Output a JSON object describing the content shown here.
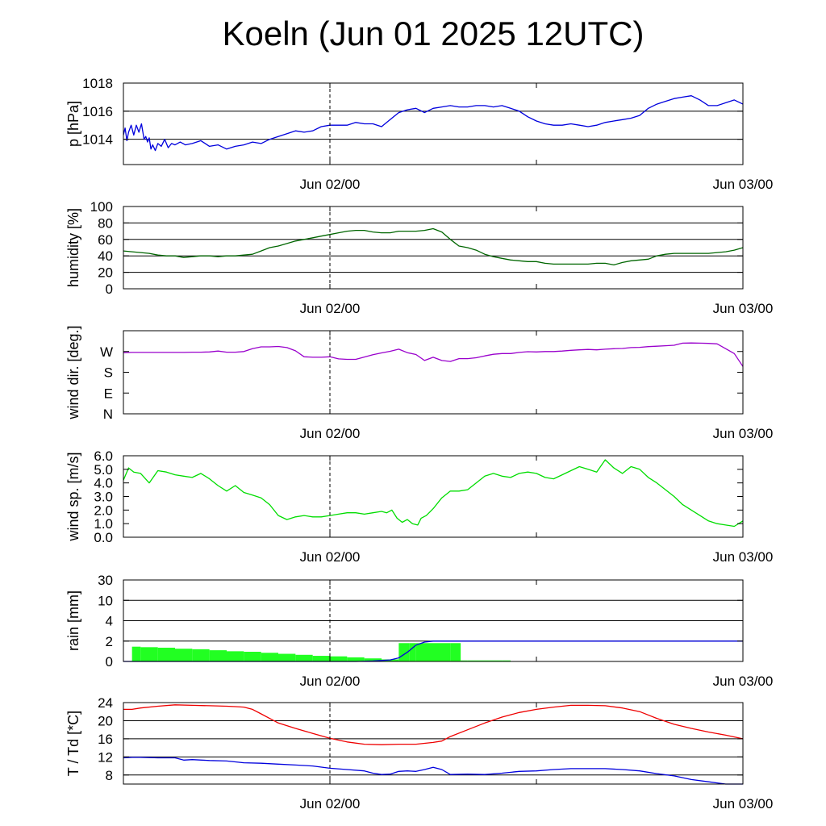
{
  "title": "Koeln (Jun 01 2025 12UTC)",
  "x_axis": {
    "unit": "hours since Jun 01 12UTC",
    "range": [
      0,
      36
    ],
    "tick_positions": [
      12,
      24,
      36
    ],
    "tick_labels": [
      "Jun 02/00",
      "Jun 03/00"
    ],
    "tick_label_positions": [
      12,
      36
    ],
    "current_time_marker": 12
  },
  "chart_data": [
    {
      "type": "line",
      "ylabel": "p [hPa]",
      "ylim": [
        1012.2,
        1018.0
      ],
      "yticks": [
        1014,
        1016,
        1018
      ],
      "ytick_labels": [
        "1014",
        "1016",
        "1018"
      ],
      "grid": true,
      "series": [
        {
          "color": "#0000dd",
          "x": [
            0,
            0.1,
            0.2,
            0.3,
            0.45,
            0.6,
            0.75,
            0.9,
            1.05,
            1.2,
            1.3,
            1.4,
            1.5,
            1.6,
            1.7,
            1.85,
            2.0,
            2.2,
            2.4,
            2.6,
            2.8,
            3.0,
            3.3,
            3.6,
            4.0,
            4.5,
            5.0,
            5.5,
            6.0,
            6.5,
            7.0,
            7.5,
            8.0,
            8.5,
            9.0,
            9.5,
            10.0,
            10.5,
            11.0,
            11.5,
            12.0,
            12.5,
            13.0,
            13.5,
            14.0,
            14.5,
            15.0,
            15.6,
            16.0,
            16.5,
            17.0,
            17.5,
            18.0,
            18.5,
            19.0,
            19.5,
            20.0,
            20.5,
            21.0,
            21.5,
            22.0,
            22.5,
            23.0,
            23.5,
            24.0,
            24.5,
            25.0,
            25.5,
            26.0,
            26.5,
            27.0,
            27.5,
            28.0,
            28.5,
            29.0,
            29.5,
            30.0,
            30.5,
            31.0,
            31.5,
            32.0,
            32.5,
            33.0,
            33.5,
            34.0,
            34.5,
            35.0,
            35.5,
            36.0
          ],
          "y": [
            1014.3,
            1014.8,
            1013.9,
            1014.5,
            1015.0,
            1014.3,
            1015.0,
            1014.5,
            1015.1,
            1014.0,
            1014.2,
            1013.8,
            1014.1,
            1013.3,
            1013.6,
            1013.2,
            1013.7,
            1013.5,
            1014.0,
            1013.4,
            1013.7,
            1013.6,
            1013.8,
            1013.6,
            1013.7,
            1013.9,
            1013.5,
            1013.6,
            1013.3,
            1013.5,
            1013.6,
            1013.8,
            1013.7,
            1014.0,
            1014.2,
            1014.4,
            1014.6,
            1014.5,
            1014.6,
            1014.9,
            1015.0,
            1015.0,
            1015.0,
            1015.2,
            1015.1,
            1015.1,
            1014.9,
            1015.5,
            1015.9,
            1016.1,
            1016.2,
            1015.9,
            1016.2,
            1016.3,
            1016.4,
            1016.3,
            1016.3,
            1016.4,
            1016.4,
            1016.3,
            1016.4,
            1016.2,
            1016.0,
            1015.6,
            1015.3,
            1015.1,
            1015.0,
            1015.0,
            1015.1,
            1015.0,
            1014.9,
            1015.0,
            1015.2,
            1015.3,
            1015.4,
            1015.5,
            1015.7,
            1016.2,
            1016.5,
            1016.7,
            1016.9,
            1017.0,
            1017.1,
            1016.8,
            1016.4,
            1016.4,
            1016.6,
            1016.8,
            1016.5
          ]
        }
      ]
    },
    {
      "type": "line",
      "ylabel": "humidity [%]",
      "ylim": [
        0,
        100
      ],
      "yticks": [
        0,
        20,
        40,
        60,
        80,
        100
      ],
      "ytick_labels": [
        "0",
        "20",
        "40",
        "60",
        "80",
        "100"
      ],
      "grid": true,
      "series": [
        {
          "color": "#006600",
          "x": [
            0,
            0.5,
            1.0,
            1.5,
            2.0,
            2.5,
            3.0,
            3.5,
            4.0,
            4.5,
            5.0,
            5.5,
            6.0,
            6.5,
            7.0,
            7.5,
            8.0,
            8.5,
            9.0,
            9.5,
            10.0,
            10.5,
            11.0,
            11.5,
            12.0,
            12.5,
            13.0,
            13.5,
            14.0,
            14.5,
            15.0,
            15.5,
            16.0,
            16.5,
            17.0,
            17.5,
            18.0,
            18.5,
            19.0,
            19.5,
            20.0,
            20.5,
            21.0,
            21.5,
            22.0,
            22.5,
            23.0,
            23.5,
            24.0,
            24.5,
            25.0,
            25.5,
            26.0,
            26.5,
            27.0,
            27.5,
            28.0,
            28.5,
            29.0,
            29.5,
            30.0,
            30.5,
            31.0,
            31.5,
            32.0,
            32.5,
            33.0,
            33.5,
            34.0,
            34.5,
            35.0,
            35.5,
            36.0
          ],
          "y": [
            46,
            45,
            44,
            43,
            41,
            40,
            40,
            38,
            39,
            40,
            40,
            39,
            40,
            40,
            41,
            42,
            46,
            50,
            52,
            55,
            58,
            60,
            62,
            64,
            66,
            68,
            70,
            71,
            71,
            69,
            68,
            68,
            70,
            70,
            70,
            71,
            73,
            69,
            60,
            52,
            50,
            47,
            42,
            39,
            37,
            35,
            34,
            33,
            33,
            31,
            30,
            30,
            30,
            30,
            30,
            31,
            31,
            29,
            32,
            34,
            35,
            36,
            40,
            42,
            43,
            43,
            43,
            43,
            43,
            44,
            45,
            47,
            50
          ]
        }
      ]
    },
    {
      "type": "line",
      "ylabel": "wind dir. [deg.]",
      "ylim": [
        0,
        360
      ],
      "yticks": [
        0,
        90,
        180,
        270
      ],
      "ytick_labels": [
        "N",
        "E",
        "S",
        "W"
      ],
      "grid": false,
      "series": [
        {
          "color": "#9900cc",
          "x": [
            0,
            0.5,
            1.0,
            1.5,
            2.0,
            2.5,
            3.0,
            3.5,
            4.0,
            4.5,
            5.0,
            5.5,
            6.0,
            6.5,
            7.0,
            7.5,
            8.0,
            8.5,
            9.0,
            9.5,
            10.0,
            10.5,
            11.0,
            11.5,
            12.0,
            12.5,
            13.0,
            13.5,
            14.0,
            14.5,
            15.0,
            15.5,
            16.0,
            16.5,
            17.0,
            17.5,
            18.0,
            18.5,
            19.0,
            19.5,
            20.0,
            20.5,
            21.0,
            21.5,
            22.0,
            22.5,
            23.0,
            23.5,
            24.0,
            24.5,
            25.0,
            25.5,
            26.0,
            26.5,
            27.0,
            27.5,
            28.0,
            28.5,
            29.0,
            29.5,
            30.0,
            30.5,
            31.0,
            31.5,
            32.0,
            32.5,
            33.0,
            33.5,
            34.0,
            34.5,
            35.0,
            35.5,
            36.0
          ],
          "y": [
            265,
            266,
            266,
            266,
            266,
            266,
            266,
            266,
            267,
            267,
            268,
            272,
            267,
            267,
            270,
            282,
            290,
            290,
            292,
            287,
            273,
            247,
            245,
            245,
            247,
            238,
            236,
            236,
            246,
            256,
            264,
            271,
            280,
            265,
            257,
            231,
            245,
            231,
            227,
            239,
            239,
            243,
            251,
            258,
            261,
            261,
            266,
            269,
            268,
            270,
            270,
            272,
            275,
            277,
            279,
            277,
            280,
            282,
            283,
            287,
            288,
            291,
            293,
            295,
            297,
            306,
            307,
            306,
            305,
            303,
            282,
            261,
            205
          ]
        }
      ]
    },
    {
      "type": "line",
      "ylabel": "wind sp. [m/s]",
      "ylim": [
        0,
        6.0
      ],
      "yticks": [
        0,
        1.0,
        2.0,
        3.0,
        4.0,
        5.0,
        6.0
      ],
      "ytick_labels": [
        "0.0",
        "1.0",
        "2.0",
        "3.0",
        "4.0",
        "5.0",
        "6.0"
      ],
      "grid": false,
      "series": [
        {
          "color": "#00dd00",
          "x": [
            0,
            0.3,
            0.6,
            1.0,
            1.5,
            2.0,
            2.5,
            3.0,
            3.5,
            4.0,
            4.5,
            5.0,
            5.5,
            6.0,
            6.5,
            7.0,
            7.5,
            8.0,
            8.5,
            9.0,
            9.5,
            10.0,
            10.5,
            11.0,
            11.5,
            12.0,
            12.5,
            13.0,
            13.5,
            14.0,
            14.5,
            15.0,
            15.3,
            15.6,
            15.9,
            16.2,
            16.5,
            16.8,
            17.1,
            17.3,
            17.6,
            18.0,
            18.5,
            19.0,
            19.5,
            20.0,
            20.5,
            21.0,
            21.5,
            22.0,
            22.5,
            23.0,
            23.5,
            24.0,
            24.5,
            25.0,
            25.5,
            26.0,
            26.5,
            27.0,
            27.5,
            28.0,
            28.5,
            29.0,
            29.5,
            30.0,
            30.5,
            31.0,
            31.5,
            32.0,
            32.5,
            33.0,
            33.5,
            34.0,
            34.5,
            35.0,
            35.5,
            36.0
          ],
          "y": [
            4.2,
            5.1,
            4.8,
            4.7,
            4.0,
            4.9,
            4.8,
            4.6,
            4.5,
            4.4,
            4.7,
            4.3,
            3.8,
            3.4,
            3.8,
            3.3,
            3.1,
            2.9,
            2.4,
            1.6,
            1.3,
            1.5,
            1.6,
            1.5,
            1.5,
            1.6,
            1.7,
            1.8,
            1.8,
            1.7,
            1.8,
            1.9,
            1.8,
            2.0,
            1.4,
            1.1,
            1.3,
            1.0,
            0.9,
            1.4,
            1.6,
            2.1,
            2.9,
            3.4,
            3.4,
            3.5,
            4.0,
            4.5,
            4.7,
            4.5,
            4.4,
            4.7,
            4.8,
            4.7,
            4.4,
            4.3,
            4.6,
            4.9,
            5.2,
            5.0,
            4.8,
            5.7,
            5.1,
            4.7,
            5.2,
            5.0,
            4.4,
            4.0,
            3.5,
            3.0,
            2.4,
            2.0,
            1.6,
            1.2,
            1.0,
            0.9,
            0.8,
            1.2
          ]
        }
      ]
    },
    {
      "type": "area",
      "ylabel": "rain [mm]",
      "ylim": [
        0,
        30
      ],
      "yticks": [
        0,
        2,
        4,
        10,
        30
      ],
      "ytick_labels": [
        "0",
        "2",
        "4",
        "10",
        "30"
      ],
      "y_scale": "nonlinear",
      "grid": true,
      "series": [
        {
          "color": "#22ff22",
          "x": [
            0.5,
            1.0,
            2.0,
            3.0,
            4.0,
            5.0,
            6.0,
            7.0,
            8.0,
            9.0,
            10.0,
            11.0,
            12.0,
            13.0,
            14.0,
            15.0,
            16.0,
            16.6,
            17.0,
            18.0,
            19.0,
            19.6,
            20.0,
            21.0,
            22.0,
            22.5
          ],
          "y": [
            1.5,
            1.45,
            1.4,
            1.35,
            1.25,
            1.2,
            1.1,
            1.0,
            0.95,
            0.85,
            0.75,
            0.65,
            0.55,
            0.5,
            0.4,
            0.3,
            0.2,
            1.8,
            1.8,
            1.8,
            1.8,
            1.8,
            0.1,
            0.1,
            0.1,
            0.1
          ]
        },
        {
          "color": "#0000dd",
          "x": [
            0,
            13.5,
            14.5,
            15.5,
            16.0,
            16.5,
            17.0,
            17.5,
            18.0,
            19.0,
            20.0,
            25.0,
            30.0,
            36.0
          ],
          "y": [
            0,
            0,
            0.05,
            0.15,
            0.35,
            0.9,
            1.6,
            1.9,
            2.0,
            2.0,
            2.0,
            2.0,
            2.0,
            2.0
          ]
        }
      ]
    },
    {
      "type": "line",
      "ylabel": "T / Td [*C]",
      "ylim": [
        6,
        24
      ],
      "yticks": [
        8,
        12,
        16,
        20,
        24
      ],
      "ytick_labels": [
        "8",
        "12",
        "16",
        "20",
        "24"
      ],
      "grid": true,
      "series": [
        {
          "color": "#ee0000",
          "x": [
            0,
            0.5,
            1.0,
            2.0,
            3.0,
            4.0,
            5.0,
            6.0,
            6.5,
            7.0,
            7.5,
            8.0,
            9.0,
            10.0,
            11.0,
            12.0,
            13.0,
            14.0,
            15.0,
            16.0,
            17.0,
            18.0,
            18.5,
            19.0,
            20.0,
            21.0,
            22.0,
            23.0,
            24.0,
            25.0,
            26.0,
            27.0,
            28.0,
            29.0,
            30.0,
            31.0,
            32.0,
            33.0,
            34.0,
            35.0,
            36.0
          ],
          "y": [
            22.5,
            22.5,
            22.8,
            23.2,
            23.5,
            23.4,
            23.3,
            23.2,
            23.1,
            23.0,
            22.5,
            21.5,
            19.5,
            18.3,
            17.2,
            16.1,
            15.3,
            14.8,
            14.7,
            14.8,
            14.8,
            15.2,
            15.5,
            16.5,
            18.0,
            19.5,
            20.8,
            21.8,
            22.5,
            23.0,
            23.4,
            23.4,
            23.3,
            22.8,
            22.0,
            20.5,
            19.2,
            18.3,
            17.5,
            16.8,
            16.0
          ]
        },
        {
          "color": "#0000dd",
          "x": [
            0,
            0.5,
            1.0,
            2.0,
            3.0,
            3.5,
            4.0,
            5.0,
            6.0,
            7.0,
            8.0,
            9.0,
            10.0,
            11.0,
            12.0,
            13.0,
            14.0,
            14.5,
            15.0,
            15.5,
            16.0,
            16.5,
            17.0,
            17.5,
            18.0,
            18.5,
            19.0,
            20.0,
            21.0,
            22.0,
            23.0,
            24.0,
            25.0,
            26.0,
            27.0,
            28.0,
            29.0,
            30.0,
            31.0,
            32.0,
            33.0,
            34.0,
            35.0,
            36.0
          ],
          "y": [
            11.8,
            11.9,
            11.9,
            11.8,
            11.8,
            11.3,
            11.4,
            11.2,
            11.1,
            10.7,
            10.6,
            10.4,
            10.2,
            10.0,
            9.5,
            9.2,
            8.9,
            8.4,
            8.1,
            8.2,
            8.8,
            8.9,
            8.8,
            9.2,
            9.7,
            9.2,
            8.1,
            8.2,
            8.1,
            8.4,
            8.8,
            8.9,
            9.2,
            9.4,
            9.4,
            9.4,
            9.2,
            8.9,
            8.3,
            7.8,
            7.0,
            6.5,
            6.0,
            6.0
          ]
        }
      ]
    }
  ]
}
